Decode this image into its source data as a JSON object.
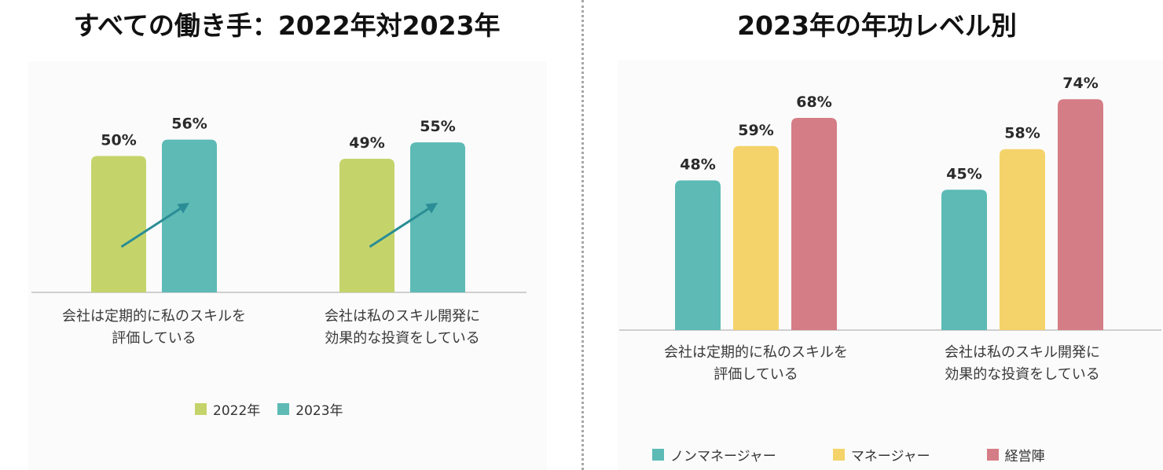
{
  "chart_data": [
    {
      "type": "bar",
      "title": "すべての働き手：2022年対2023年",
      "categories": [
        "会社は定期的に私のスキルを\n評価している",
        "会社は私のスキル開発に\n効果的な投資をしている"
      ],
      "series": [
        {
          "name": "2022年",
          "values": [
            50,
            49
          ],
          "labels": [
            "50%",
            "49%"
          ],
          "color": "#c5d46a"
        },
        {
          "name": "2023年",
          "values": [
            56,
            55
          ],
          "labels": [
            "56%",
            "55%"
          ],
          "color": "#5dbab5"
        }
      ],
      "ylim": [
        0,
        70
      ],
      "grid": false,
      "legend": "bottom",
      "annotation": "trend arrows from 2022 to 2023",
      "arrow_color": "#2b8d95"
    },
    {
      "type": "bar",
      "title": "2023年の年功レベル別",
      "categories": [
        "会社は定期的に私のスキルを\n評価している",
        "会社は私のスキル開発に\n効果的な投資をしている"
      ],
      "series": [
        {
          "name": "ノンマネージャー",
          "values": [
            48,
            45
          ],
          "labels": [
            "48%",
            "45%"
          ],
          "color": "#5dbab5"
        },
        {
          "name": "マネージャー",
          "values": [
            59,
            58
          ],
          "labels": [
            "59%",
            "58%"
          ],
          "color": "#f4d36a"
        },
        {
          "name": "経営陣",
          "values": [
            68,
            74
          ],
          "labels": [
            "68%",
            "74%"
          ],
          "color": "#d57d86"
        }
      ],
      "ylim": [
        0,
        90
      ],
      "grid": false,
      "legend": "bottom"
    }
  ]
}
